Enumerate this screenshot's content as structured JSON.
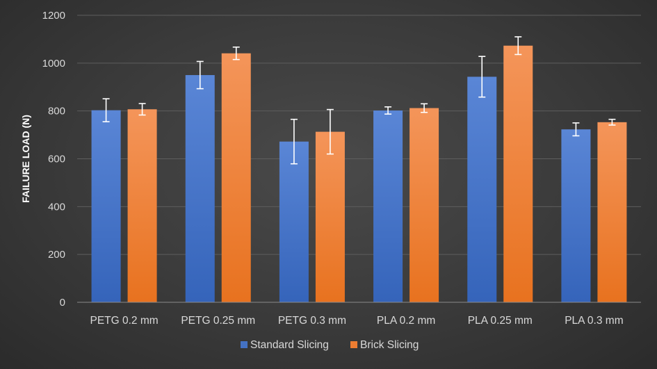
{
  "chart_data": {
    "type": "bar",
    "title": "",
    "xlabel": "",
    "ylabel": "FAILURE LOAD (N)",
    "ylim": [
      0,
      1200
    ],
    "yticks": [
      0,
      200,
      400,
      600,
      800,
      1000,
      1200
    ],
    "grid": true,
    "legend_position": "bottom",
    "categories": [
      "PETG 0.2 mm",
      "PETG 0.25 mm",
      "PETG 0.3 mm",
      "PLA 0.2 mm",
      "PLA 0.25 mm",
      "PLA 0.3 mm"
    ],
    "series": [
      {
        "name": "Standard Slicing",
        "color": "#4472c4",
        "values": [
          803,
          950,
          672,
          802,
          943,
          723
        ],
        "errors": [
          48,
          57,
          93,
          15,
          85,
          27
        ]
      },
      {
        "name": "Brick Slicing",
        "color": "#ed7d31",
        "values": [
          807,
          1041,
          713,
          812,
          1073,
          753
        ],
        "errors": [
          24,
          26,
          93,
          18,
          37,
          12
        ]
      }
    ]
  }
}
